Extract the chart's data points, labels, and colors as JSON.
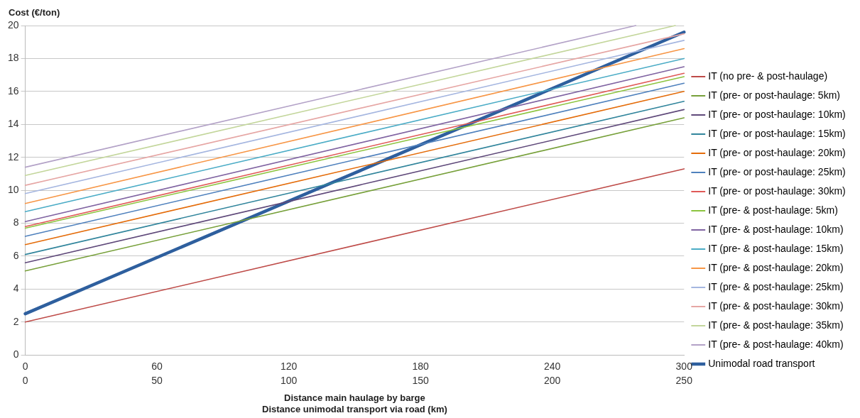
{
  "chart_data": {
    "type": "line",
    "xlabel": "Distance main haulage by barge",
    "x2label": "Distance unimodal transport via road (km)",
    "ylabel": "Cost (€/ton)",
    "x": [
      0,
      300
    ],
    "xlim": [
      0,
      300
    ],
    "xticks": [
      0,
      60,
      120,
      180,
      240,
      300
    ],
    "x2lim": [
      0,
      250
    ],
    "x2ticks": [
      0,
      50,
      100,
      150,
      200,
      250
    ],
    "ylim": [
      0,
      20
    ],
    "yticks": [
      0,
      2,
      4,
      6,
      8,
      10,
      12,
      14,
      16,
      18,
      20
    ],
    "grid": "y",
    "legend": "right",
    "marker": "none",
    "line_style": "solid",
    "series": [
      {
        "name": "IT (no pre- & post-haulage)",
        "color": "#be4b48",
        "values": [
          2.0,
          11.3
        ]
      },
      {
        "name": "IT (pre- or post-haulage: 5km)",
        "color": "#77a03a",
        "values": [
          5.1,
          14.4
        ]
      },
      {
        "name": "IT (pre- or post-haulage: 10km)",
        "color": "#5f497a",
        "values": [
          5.6,
          14.9
        ]
      },
      {
        "name": "IT (pre- or post-haulage: 15km)",
        "color": "#31859c",
        "values": [
          6.1,
          15.4
        ]
      },
      {
        "name": "IT (pre- or post-haulage: 20km)",
        "color": "#e46c0a",
        "values": [
          6.7,
          16.0
        ]
      },
      {
        "name": "IT (pre- or post-haulage: 25km)",
        "color": "#4f81bd",
        "values": [
          7.2,
          16.5
        ]
      },
      {
        "name": "IT (pre- or post-haulage: 30km)",
        "color": "#e05a57",
        "values": [
          7.8,
          17.1
        ]
      },
      {
        "name": "IT (pre- & post-haulage: 5km)",
        "color": "#8cc43f",
        "values": [
          7.7,
          16.9
        ]
      },
      {
        "name": "IT (pre- & post-haulage: 10km)",
        "color": "#8064a2",
        "values": [
          8.1,
          17.5
        ]
      },
      {
        "name": "IT (pre- & post-haulage: 15km)",
        "color": "#4bacc6",
        "values": [
          8.7,
          18.0
        ]
      },
      {
        "name": "IT (pre- & post-haulage: 20km)",
        "color": "#f79646",
        "values": [
          9.2,
          18.6
        ]
      },
      {
        "name": "IT (pre- & post-haulage: 25km)",
        "color": "#a5b6e0",
        "values": [
          9.8,
          19.1
        ]
      },
      {
        "name": "IT (pre- & post-haulage: 30km)",
        "color": "#e6a6a4",
        "values": [
          10.3,
          19.5
        ]
      },
      {
        "name": "IT (pre- & post-haulage: 35km)",
        "color": "#c3d69b",
        "x": [
          0,
          296
        ],
        "values": [
          10.9,
          20.0
        ]
      },
      {
        "name": "IT (pre- & post-haulage: 40km)",
        "color": "#b3a2c7",
        "x": [
          0,
          278
        ],
        "values": [
          11.4,
          20.0
        ]
      },
      {
        "name": "Unimodal road transport",
        "color": "#2e5f9e",
        "axis": "x2",
        "x": [
          0,
          250
        ],
        "values": [
          2.5,
          19.6
        ]
      }
    ]
  }
}
